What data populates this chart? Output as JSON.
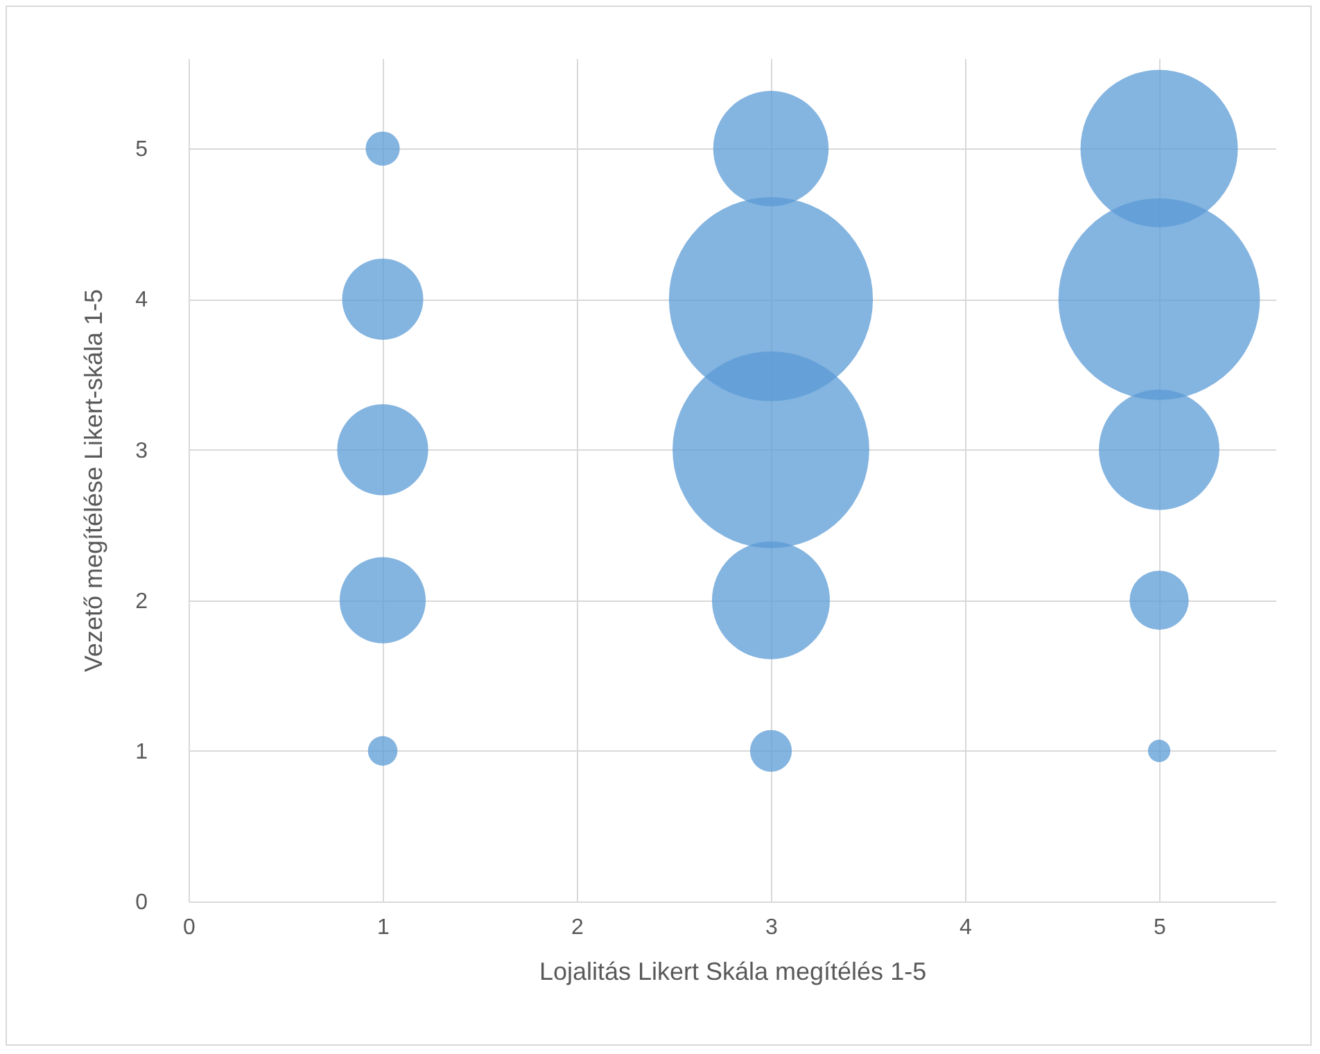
{
  "chart_data": {
    "type": "bubble",
    "xlabel": "Lojalitás Likert Skála megítélés 1-5",
    "ylabel": "Vezető megítélése Likert-skála 1-5",
    "x": [
      1,
      1,
      1,
      1,
      1,
      3,
      3,
      3,
      3,
      3,
      5,
      5,
      5,
      5,
      5
    ],
    "series": [
      {
        "color": "#5b9bd5",
        "values": [
          5,
          4,
          3,
          2,
          1,
          5,
          4,
          3,
          2,
          1,
          5,
          4,
          3,
          2,
          1
        ],
        "sizes": [
          0.028,
          0.158,
          0.199,
          0.178,
          0.021,
          0.32,
          1,
          0.93,
          0.334,
          0.042,
          0.595,
          0.976,
          0.349,
          0.084,
          0.012
        ]
      }
    ],
    "xlim": [
      0,
      5.6
    ],
    "xticks": [
      0,
      1,
      2,
      3,
      4,
      5
    ],
    "ylim": [
      0,
      5.6
    ],
    "yticks": [
      0,
      1,
      2,
      3,
      4,
      5
    ],
    "grid": true
  }
}
